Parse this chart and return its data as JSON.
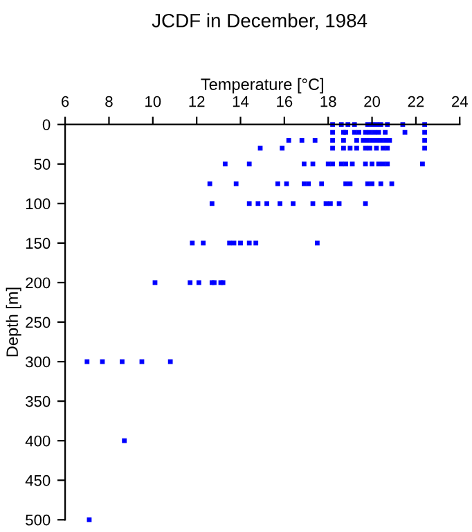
{
  "chart_data": {
    "type": "scatter",
    "title": "JCDF in December, 1984",
    "xlabel": "Temperature [°C]",
    "ylabel": "Depth [m]",
    "xlim": [
      6,
      24
    ],
    "xticks": [
      6,
      8,
      10,
      12,
      14,
      16,
      18,
      20,
      22,
      24
    ],
    "ylim": [
      500,
      0
    ],
    "yticks": [
      0,
      50,
      100,
      150,
      200,
      250,
      300,
      350,
      400,
      450,
      500
    ],
    "grid": false,
    "marker": "square",
    "series": [
      {
        "color": "#0000ff",
        "x": [
          18.2,
          18.6,
          18.9,
          19.2,
          19.8,
          20.0,
          20.2,
          20.4,
          20.7,
          21.4,
          22.4,
          18.2,
          18.7,
          18.8,
          19.2,
          19.4,
          19.7,
          19.9,
          20.1,
          20.3,
          20.6,
          21.5,
          22.4,
          16.2,
          16.8,
          17.4,
          18.2,
          18.7,
          19.3,
          19.6,
          19.8,
          20.0,
          20.2,
          20.4,
          20.6,
          20.8,
          22.4,
          14.9,
          15.9,
          18.2,
          18.7,
          19.0,
          19.3,
          19.7,
          19.9,
          20.2,
          20.5,
          20.7,
          22.4,
          13.3,
          14.4,
          16.9,
          17.3,
          18.0,
          18.2,
          18.6,
          18.8,
          19.1,
          19.7,
          20.0,
          20.3,
          20.5,
          20.7,
          22.3,
          12.6,
          13.8,
          15.7,
          16.1,
          16.9,
          17.1,
          17.7,
          18.8,
          19.0,
          19.8,
          20.0,
          20.4,
          20.9,
          12.7,
          14.4,
          14.8,
          15.2,
          15.8,
          16.4,
          17.3,
          17.9,
          18.1,
          18.5,
          19.7,
          11.8,
          12.3,
          13.5,
          13.7,
          14.0,
          14.4,
          14.7,
          17.5,
          10.1,
          11.7,
          12.1,
          12.7,
          12.8,
          13.1,
          13.2,
          7.0,
          7.7,
          8.6,
          9.5,
          10.8,
          8.7,
          7.1
        ],
        "values": [
          0,
          0,
          0,
          0,
          0,
          0,
          0,
          0,
          0,
          0,
          0,
          10,
          10,
          10,
          10,
          10,
          10,
          10,
          10,
          10,
          10,
          10,
          10,
          20,
          20,
          20,
          20,
          20,
          20,
          20,
          20,
          20,
          20,
          20,
          20,
          20,
          20,
          30,
          30,
          30,
          30,
          30,
          30,
          30,
          30,
          30,
          30,
          30,
          30,
          50,
          50,
          50,
          50,
          50,
          50,
          50,
          50,
          50,
          50,
          50,
          50,
          50,
          50,
          50,
          75,
          75,
          75,
          75,
          75,
          75,
          75,
          75,
          75,
          75,
          75,
          75,
          75,
          100,
          100,
          100,
          100,
          100,
          100,
          100,
          100,
          100,
          100,
          100,
          150,
          150,
          150,
          150,
          150,
          150,
          150,
          150,
          200,
          200,
          200,
          200,
          200,
          200,
          200,
          300,
          300,
          300,
          300,
          300,
          400,
          500
        ]
      }
    ]
  }
}
